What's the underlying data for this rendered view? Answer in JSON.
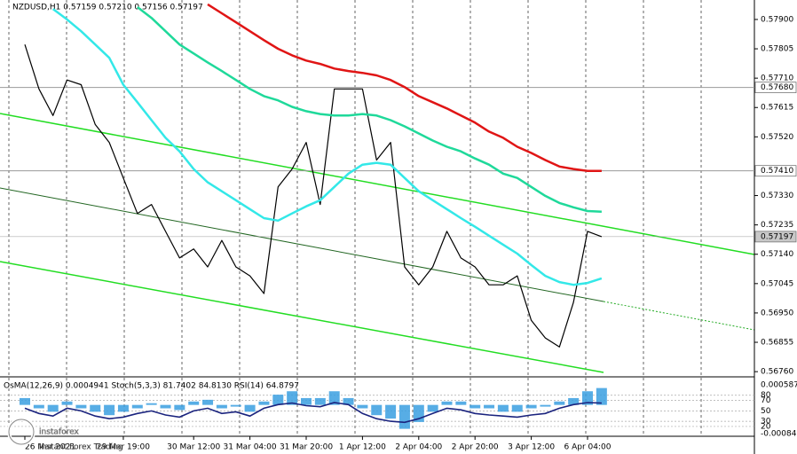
{
  "chart_data": {
    "type": "line",
    "title": "NZDUSD,H1 0.57159 0.57210 0.57156 0.57197",
    "categories": [
      "26 Mar 2021",
      null,
      null,
      null,
      null,
      null,
      null,
      "29 Mar 19:00",
      null,
      null,
      null,
      null,
      "30 Mar 12:00",
      null,
      null,
      null,
      "31 Mar 04:00",
      null,
      null,
      null,
      "31 Mar 20:00",
      null,
      null,
      null,
      "1 Apr 12:00",
      null,
      null,
      null,
      "2 Apr 04:00",
      null,
      null,
      null,
      "2 Apr 20:00",
      null,
      null,
      null,
      "3 Apr 12:00",
      null,
      null,
      null,
      "6 Apr 04:00",
      null
    ],
    "series": [
      {
        "name": "NZDUSD",
        "color": "#000000",
        "values": [
          0.57819,
          0.57675,
          0.57589,
          0.57704,
          0.57689,
          0.5756,
          0.57502,
          0.57387,
          0.57272,
          0.57301,
          0.57214,
          0.57128,
          0.57157,
          0.57099,
          0.57185,
          0.57099,
          0.5707,
          0.57013,
          0.57358,
          0.57416,
          0.57502,
          0.57301,
          0.57675,
          0.57675,
          0.57675,
          0.57445,
          0.57502,
          0.57099,
          0.57041,
          0.57099,
          0.57214,
          0.57128,
          0.57099,
          0.57041,
          0.57041,
          0.5707,
          0.56926,
          0.56869,
          0.5684,
          0.56984,
          0.57214,
          0.57197
        ]
      },
      {
        "name": "MA fast",
        "color": "#33e8e8",
        "values": [
          null,
          null,
          0.57934,
          0.579,
          0.57862,
          0.57819,
          0.57776,
          0.57689,
          0.57632,
          0.57574,
          0.57517,
          0.57473,
          0.57416,
          0.57373,
          0.57344,
          0.57315,
          0.57286,
          0.57257,
          0.57249,
          0.57272,
          0.57295,
          0.57315,
          0.57358,
          0.57401,
          0.5743,
          0.57436,
          0.5743,
          0.57387,
          0.57344,
          0.57315,
          0.57286,
          0.57257,
          0.57229,
          0.572,
          0.57171,
          0.57142,
          0.57105,
          0.5707,
          0.5705,
          0.57041,
          0.57047,
          0.57062
        ]
      },
      {
        "name": "MA mid",
        "color": "#1fd99a",
        "values": [
          null,
          null,
          null,
          null,
          null,
          null,
          null,
          null,
          0.5794,
          0.57905,
          0.57862,
          0.57819,
          0.5779,
          0.57761,
          0.57733,
          0.57704,
          0.57675,
          0.57652,
          0.57638,
          0.57617,
          0.57603,
          0.57594,
          0.57589,
          0.57589,
          0.57594,
          0.57589,
          0.57574,
          0.57554,
          0.57531,
          0.57508,
          0.57488,
          0.57473,
          0.5745,
          0.5743,
          0.57401,
          0.57387,
          0.57358,
          0.57329,
          0.57306,
          0.57292,
          0.5728,
          0.57278
        ]
      },
      {
        "name": "MA slow",
        "color": "#e01515",
        "values": [
          null,
          null,
          null,
          null,
          null,
          null,
          null,
          null,
          null,
          null,
          null,
          null,
          null,
          0.57949,
          0.5792,
          0.57891,
          0.57862,
          0.57833,
          0.57805,
          0.57784,
          0.57767,
          0.57756,
          0.57741,
          0.57733,
          0.57727,
          0.57719,
          0.57704,
          0.57681,
          0.57652,
          0.57632,
          0.57612,
          0.57589,
          0.57566,
          0.57537,
          0.57517,
          0.57488,
          0.57468,
          0.57445,
          0.57424,
          0.57416,
          0.5741,
          0.5741
        ]
      }
    ],
    "ylim": [
      0.56746,
      0.57963
    ],
    "yticks": [
      {
        "value": 0.579,
        "label": "0.57900"
      },
      {
        "value": 0.57805,
        "label": "0.57805"
      },
      {
        "value": 0.5771,
        "label": "0.57710"
      },
      {
        "value": 0.57615,
        "label": "0.57615"
      },
      {
        "value": 0.5752,
        "label": "0.57520"
      },
      {
        "value": 0.5733,
        "label": "0.57330"
      },
      {
        "value": 0.57235,
        "label": "0.57235"
      },
      {
        "value": 0.5714,
        "label": "0.57140"
      },
      {
        "value": 0.57045,
        "label": "0.57045"
      },
      {
        "value": 0.5695,
        "label": "0.56950"
      },
      {
        "value": 0.56855,
        "label": "0.56855"
      },
      {
        "value": 0.5676,
        "label": "0.56760"
      }
    ],
    "price_markers": [
      {
        "value": 0.5768,
        "label": "0.57680"
      },
      {
        "value": 0.5741,
        "label": "0.57410"
      },
      {
        "value": 0.57197,
        "label": "0.57197"
      }
    ],
    "indicator": {
      "title": "OsMA(12,26,9) 0.0004941 Stoch(5,3,3) 81.7402 84.8130 RSI(14) 64.8797",
      "osma_color": "#3a9fe0",
      "osma": [
        0.0002,
        -0.0001,
        -0.0002,
        0.0001,
        -0.0001,
        -0.0002,
        -0.0003,
        -0.0002,
        -0.0001,
        5e-05,
        -0.0001,
        -0.00015,
        0.0001,
        0.00015,
        -0.0001,
        -5e-05,
        -0.0002,
        0.0001,
        0.0003,
        0.0004,
        0.0002,
        0.0002,
        0.0004,
        0.0002,
        -0.0001,
        -0.0003,
        -0.0004,
        -0.0007,
        -0.0005,
        -0.0002,
        0.0001,
        0.0001,
        -0.0001,
        -0.0001,
        -0.0002,
        -0.0002,
        -0.0001,
        -5e-05,
        0.0001,
        0.0002,
        0.0004,
        0.0004941
      ],
      "osma_lim": [
        -0.00084,
        0.0005879
      ],
      "osma_ticks": [
        0.0005879,
        {
          "value": -0.00084,
          "label": "-0.000840"
        }
      ],
      "rsi_color": "#1a237e",
      "rsi": [
        55,
        45,
        40,
        55,
        50,
        40,
        35,
        38,
        45,
        50,
        42,
        38,
        50,
        55,
        45,
        48,
        40,
        55,
        62,
        65,
        60,
        58,
        66,
        62,
        45,
        35,
        30,
        28,
        35,
        45,
        55,
        52,
        45,
        42,
        40,
        38,
        42,
        45,
        55,
        62,
        66,
        64.8797
      ],
      "rsi_lim": [
        0,
        100
      ],
      "levels": [
        80,
        70,
        50,
        30,
        20
      ]
    }
  },
  "watermark": {
    "brand": "instaforex",
    "tagline": "Instant Forex Trading"
  }
}
